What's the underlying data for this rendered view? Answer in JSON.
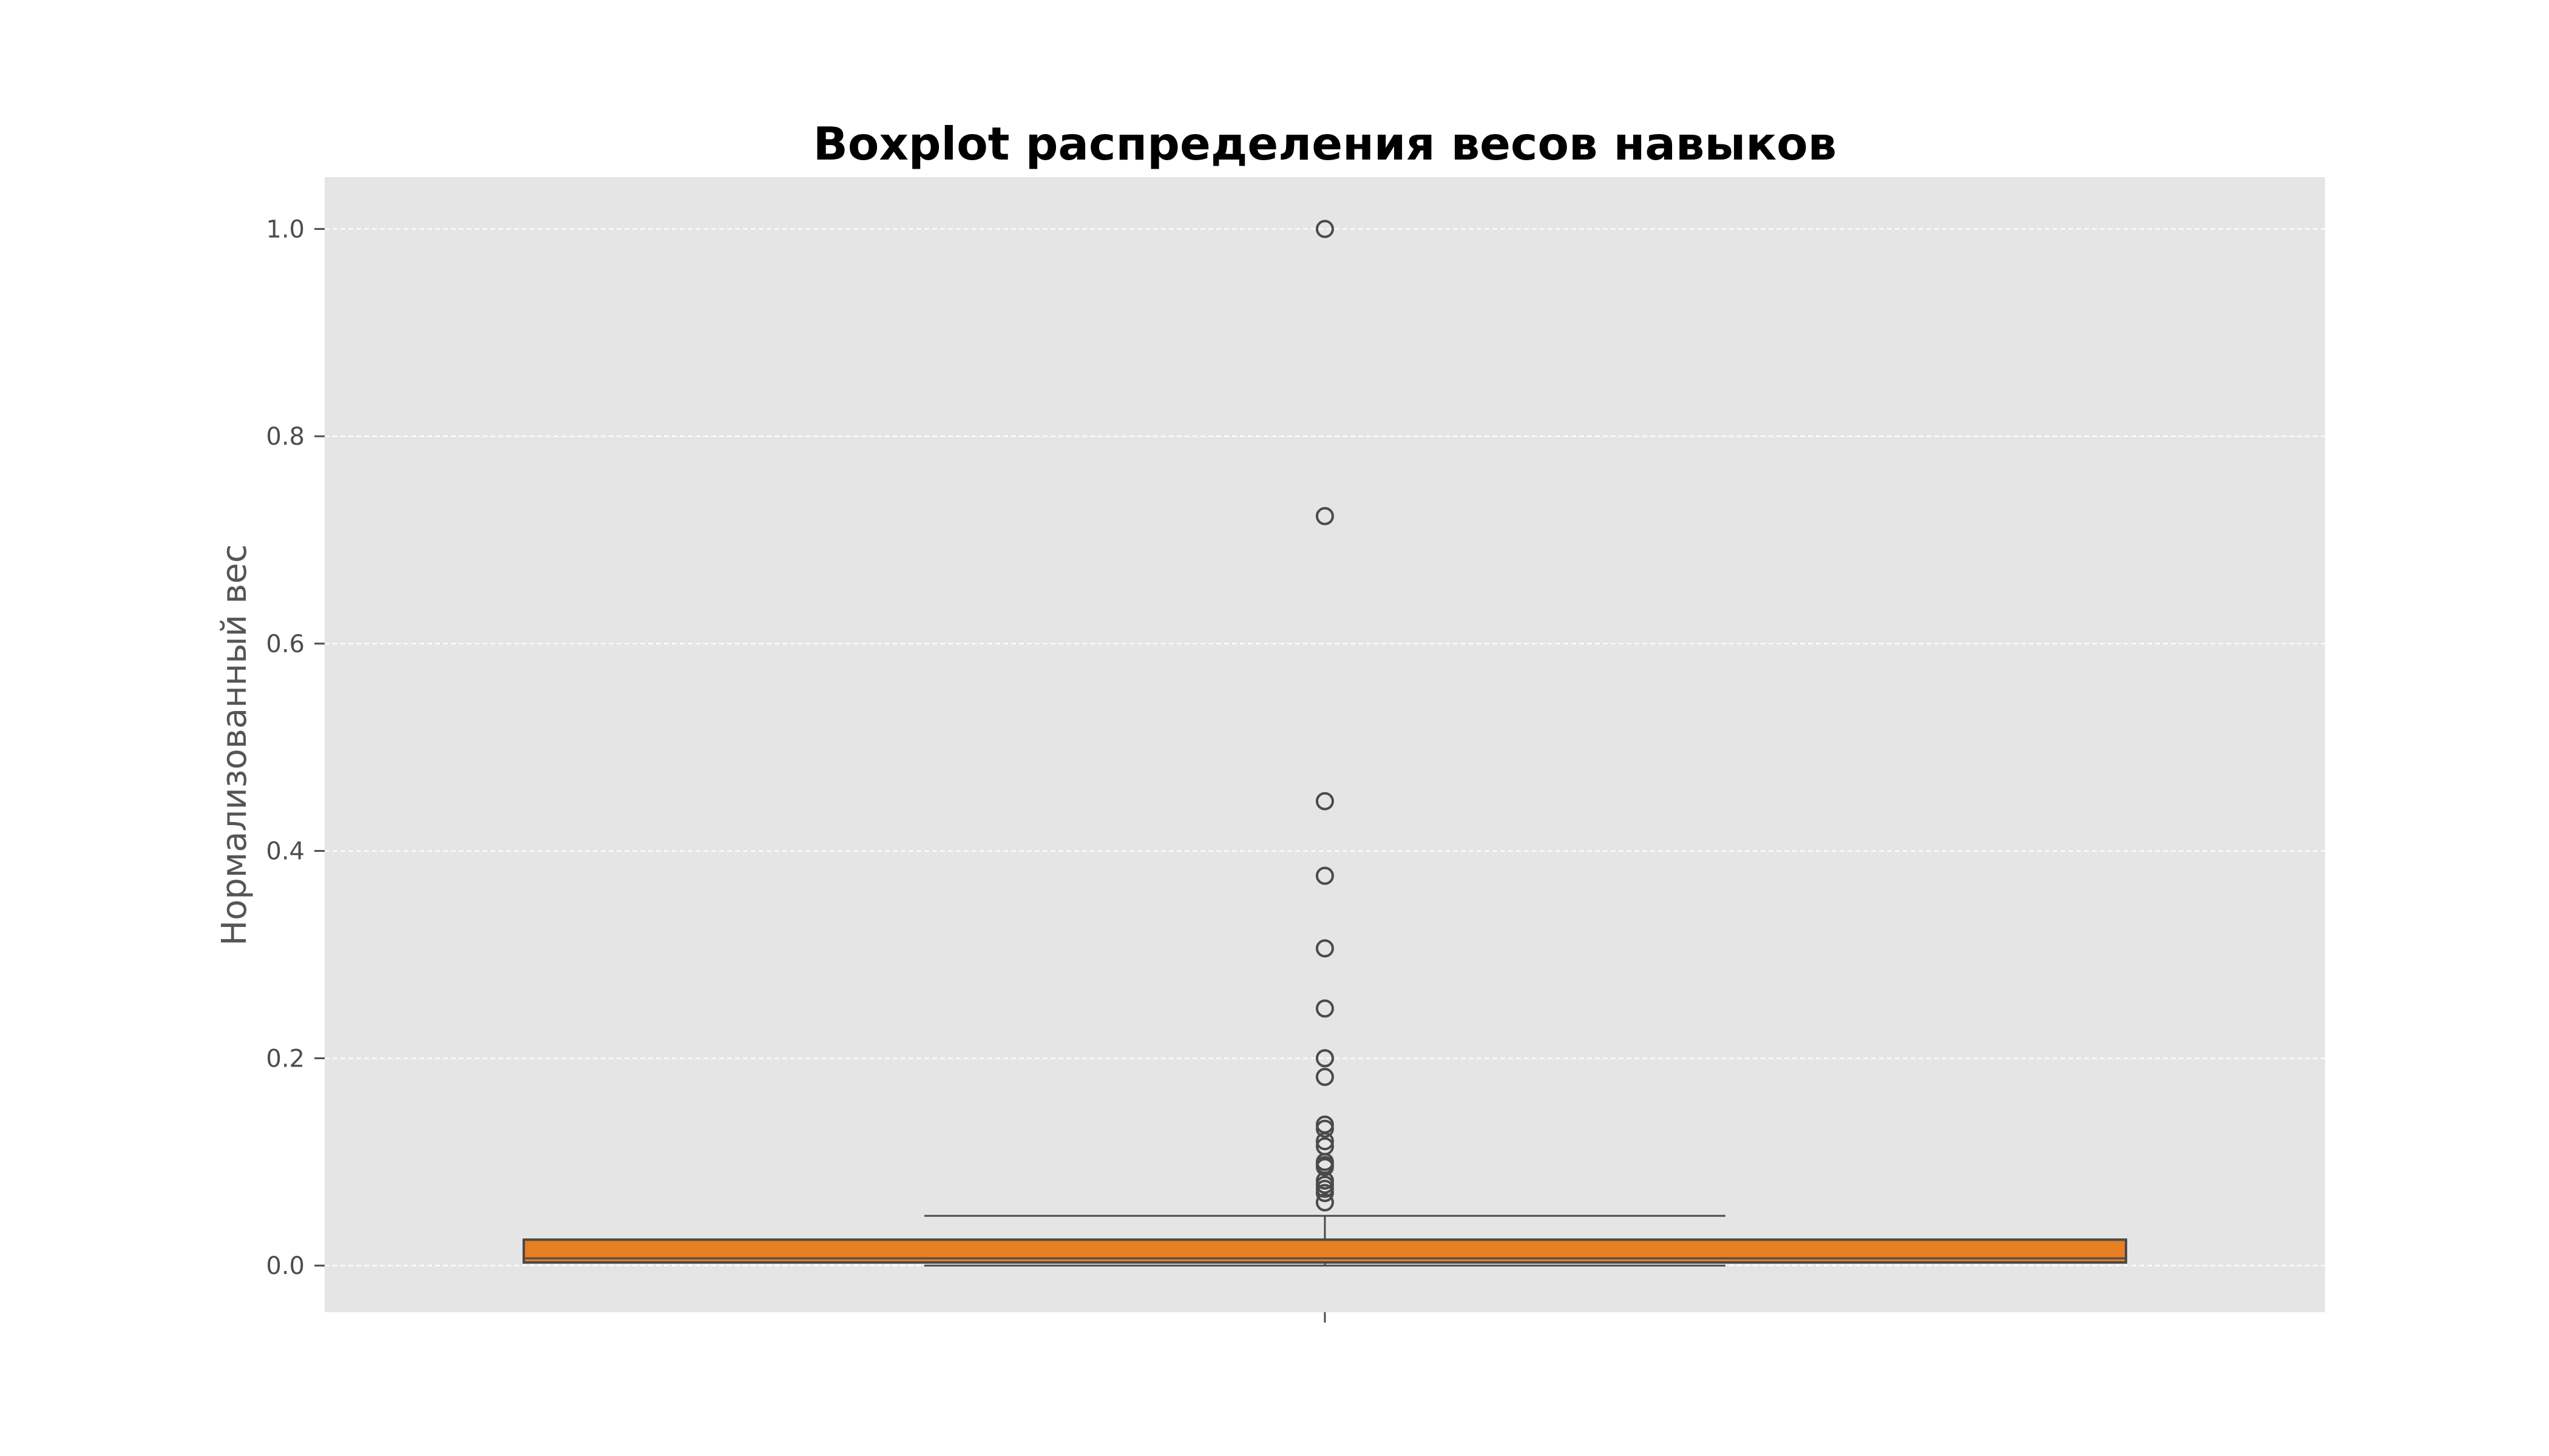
{
  "chart_data": {
    "type": "boxplot",
    "title": "Boxplot распределения весов навыков",
    "xlabel": "",
    "ylabel": "Нормализованный вес",
    "ylim": [
      -0.045,
      1.05
    ],
    "yticks": [
      "0.0",
      "0.2",
      "0.4",
      "0.6",
      "0.8",
      "1.0"
    ],
    "grid": true,
    "box": {
      "whisker_low": 0.0,
      "q1": 0.003,
      "median": 0.007,
      "q3": 0.025,
      "whisker_high": 0.048
    },
    "outliers": [
      1.0,
      0.723,
      0.448,
      0.376,
      0.306,
      0.248,
      0.2,
      0.182,
      0.136,
      0.132,
      0.12,
      0.115,
      0.1,
      0.097,
      0.095,
      0.082,
      0.078,
      0.074,
      0.07,
      0.061
    ],
    "colors": {
      "box_fill": "#e67e22",
      "box_edge": "#4a4a4a",
      "plot_background": "#e5e5e5",
      "grid": "#ffffff"
    }
  }
}
